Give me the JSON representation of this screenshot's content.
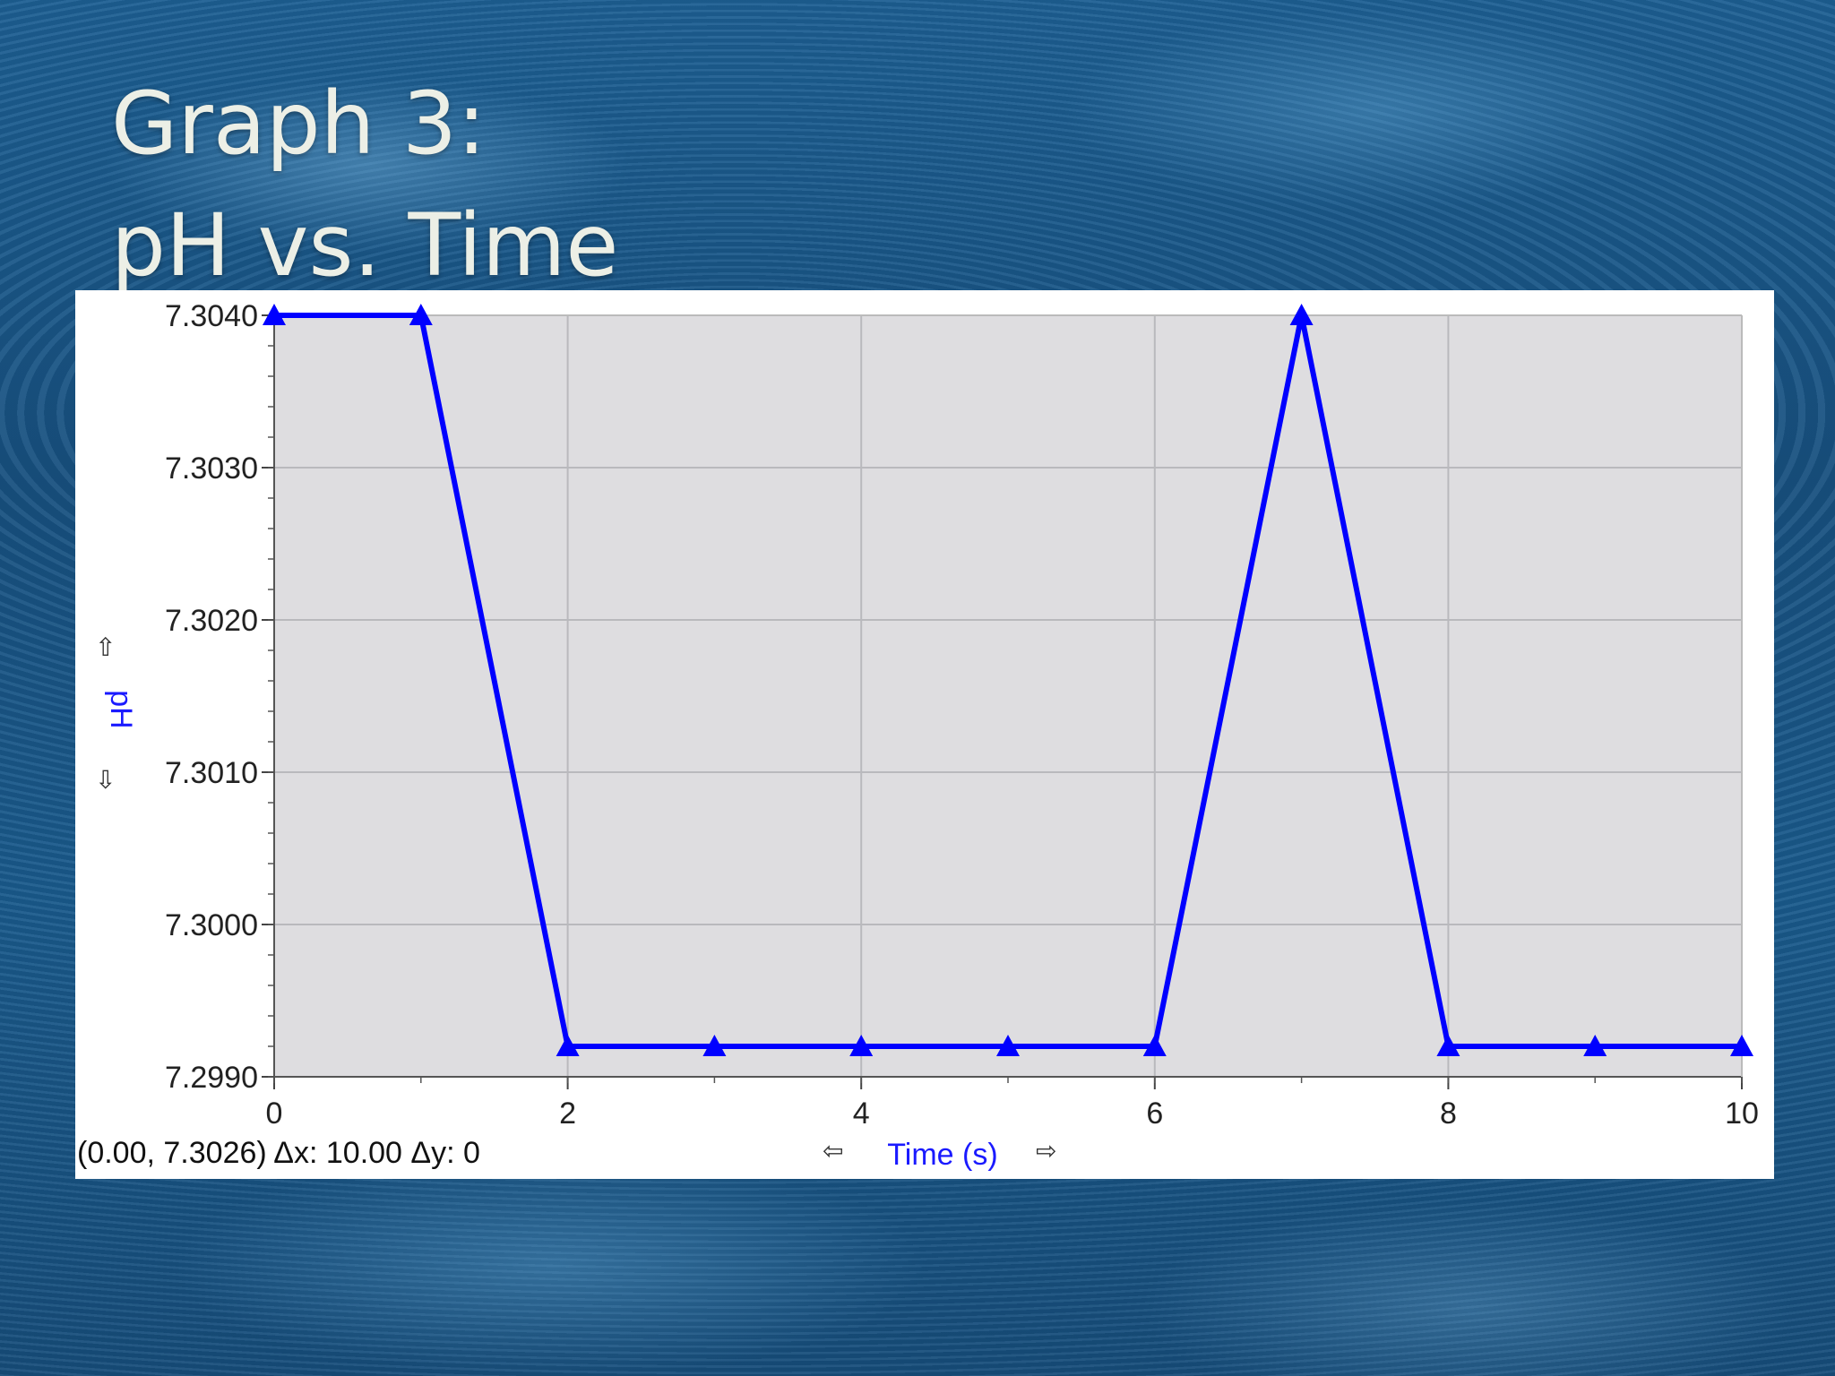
{
  "slide": {
    "title_line1": "Graph 3:",
    "title_line2": "pH vs. Time"
  },
  "chart_data": {
    "type": "line",
    "xlabel": "Time (s)",
    "ylabel": "pH",
    "xlim": [
      0,
      10
    ],
    "ylim": [
      7.299,
      7.304
    ],
    "x_ticks": [
      "0",
      "2",
      "4",
      "6",
      "8",
      "10"
    ],
    "y_ticks": [
      "7.2990",
      "7.3000",
      "7.3010",
      "7.3020",
      "7.3030",
      "7.3040"
    ],
    "series": [
      {
        "x": [
          0,
          1,
          2,
          3,
          4,
          5,
          6,
          7,
          8,
          9,
          10
        ],
        "values": [
          7.304,
          7.304,
          7.2992,
          7.2992,
          7.2992,
          7.2992,
          7.2992,
          7.304,
          7.2992,
          7.2992,
          7.2992
        ]
      }
    ],
    "marker": "triangle",
    "grid": true,
    "line_color": "#0000ff",
    "plot_background": "#dedde0"
  },
  "status": {
    "readout": "(0.00, 7.3026) Δx: 10.00 Δy: 0",
    "left_arrow": "⇦",
    "right_arrow": "⇨",
    "up_arrow": "⇧",
    "down_arrow": "⇩"
  }
}
